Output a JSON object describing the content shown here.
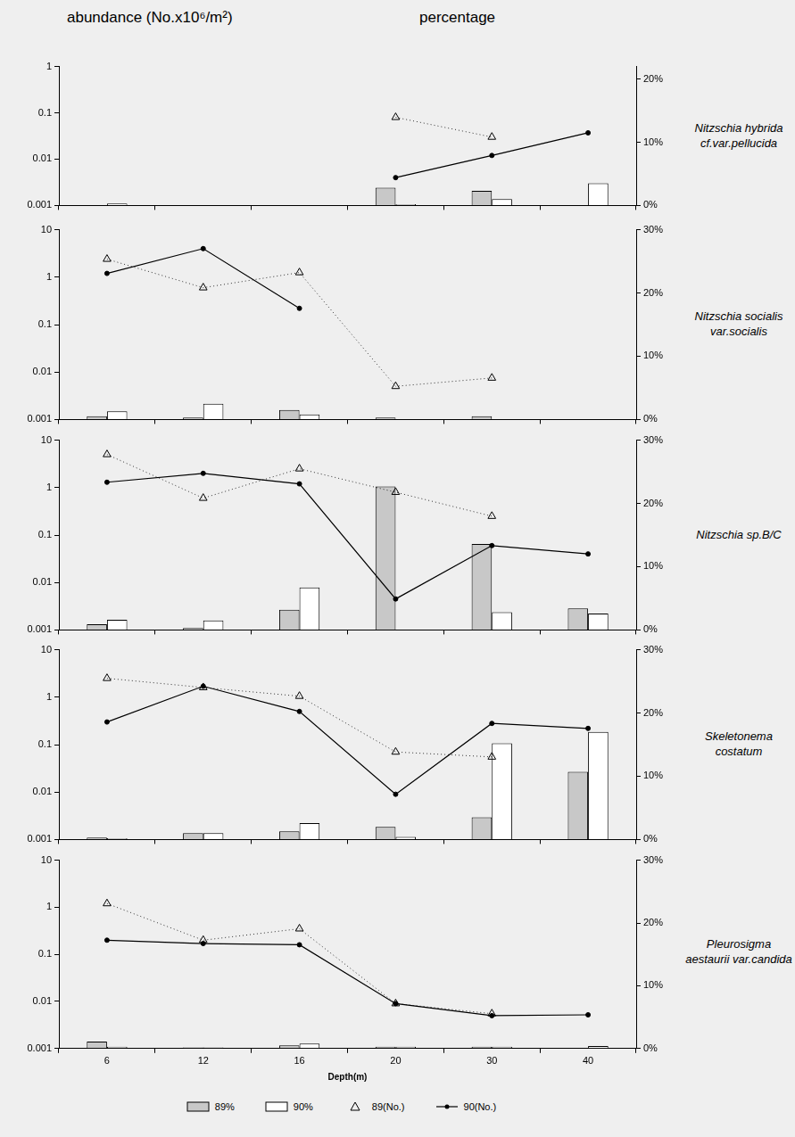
{
  "chart_data": [
    {
      "type": "bar",
      "title": "Nitzschia hybrida cf.var.pellucida",
      "ylabel": "abundance (No.x10⁶/m²)",
      "y2label": "percentage",
      "categories": [
        "6",
        "12",
        "16",
        "20",
        "30",
        "40"
      ],
      "log": "y",
      "grid": false,
      "tick_labels": "y",
      "ylim": [
        0.001,
        1
      ],
      "yticks": [
        0.001,
        0.01,
        0.1,
        1
      ],
      "y2lim": [
        0,
        22
      ],
      "y2ticks": [
        {
          "value": 0,
          "label": "0%"
        },
        {
          "value": 10,
          "label": "10%"
        },
        {
          "value": 20,
          "label": "20%"
        }
      ],
      "series": [
        {
          "name": "89%",
          "type": "bar",
          "axis": "y2",
          "color": "#c8c8c8",
          "values": [
            null,
            null,
            null,
            2.8,
            2.3,
            null
          ]
        },
        {
          "name": "90%",
          "type": "bar",
          "axis": "y2",
          "color": "#ffffff",
          "values": [
            0.3,
            null,
            null,
            0.2,
            1,
            3.5
          ]
        },
        {
          "name": "89(No.)",
          "type": "line",
          "marker": "triangle",
          "line_style": "dotted",
          "color": "#000000",
          "values": [
            null,
            null,
            null,
            0.08,
            0.03,
            null
          ]
        },
        {
          "name": "90(No.)",
          "type": "line",
          "marker": "circle",
          "line_style": "solid",
          "color": "#000000",
          "values": [
            null,
            null,
            null,
            0.004,
            0.012,
            0.037
          ]
        }
      ]
    },
    {
      "type": "bar",
      "title": "Nitzschia socialis var.socialis",
      "categories": [
        "6",
        "12",
        "16",
        "20",
        "30",
        "40"
      ],
      "log": "y",
      "grid": false,
      "tick_labels": "y",
      "ylim": [
        0.001,
        10
      ],
      "yticks": [
        0.001,
        0.01,
        0.1,
        1,
        10
      ],
      "y2lim": [
        0,
        30
      ],
      "y2ticks": [
        {
          "value": 0,
          "label": "0%"
        },
        {
          "value": 10,
          "label": "10%"
        },
        {
          "value": 20,
          "label": "20%"
        },
        {
          "value": 30,
          "label": "30%"
        }
      ],
      "series": [
        {
          "name": "89%",
          "type": "bar",
          "axis": "y2",
          "color": "#c8c8c8",
          "values": [
            0.5,
            0.3,
            1.5,
            0.3,
            0.5,
            null
          ]
        },
        {
          "name": "90%",
          "type": "bar",
          "axis": "y2",
          "color": "#ffffff",
          "values": [
            1.3,
            2.5,
            0.8,
            null,
            null,
            null
          ]
        },
        {
          "name": "89(No.)",
          "type": "line",
          "marker": "triangle",
          "line_style": "dotted",
          "color": "#000000",
          "values": [
            2.4,
            0.6,
            1.25,
            0.005,
            0.0075,
            null
          ]
        },
        {
          "name": "90(No.)",
          "type": "line",
          "marker": "circle",
          "line_style": "solid",
          "color": "#000000",
          "values": [
            1.2,
            4,
            0.22,
            null,
            null,
            null
          ]
        }
      ]
    },
    {
      "type": "bar",
      "title": "Nitzschia sp.B/C",
      "categories": [
        "6",
        "12",
        "16",
        "20",
        "30",
        "40"
      ],
      "log": "y",
      "grid": false,
      "tick_labels": "y",
      "ylim": [
        0.001,
        10
      ],
      "yticks": [
        0.001,
        0.01,
        0.1,
        1,
        10
      ],
      "y2lim": [
        0,
        30
      ],
      "y2ticks": [
        {
          "value": 0,
          "label": "0%"
        },
        {
          "value": 10,
          "label": "10%"
        },
        {
          "value": 20,
          "label": "20%"
        },
        {
          "value": 30,
          "label": "30%"
        }
      ],
      "series": [
        {
          "name": "89%",
          "type": "bar",
          "axis": "y2",
          "color": "#c8c8c8",
          "values": [
            0.9,
            0.3,
            3.2,
            22.7,
            13.6,
            3.4
          ]
        },
        {
          "name": "90%",
          "type": "bar",
          "axis": "y2",
          "color": "#ffffff",
          "values": [
            1.6,
            1.5,
            6.7,
            null,
            2.8,
            2.6
          ]
        },
        {
          "name": "89(No.)",
          "type": "line",
          "marker": "triangle",
          "line_style": "dotted",
          "color": "#000000",
          "values": [
            5,
            0.6,
            2.5,
            0.8,
            0.25,
            null
          ]
        },
        {
          "name": "90(No.)",
          "type": "line",
          "marker": "circle",
          "line_style": "solid",
          "color": "#000000",
          "values": [
            1.3,
            2,
            1.2,
            0.0045,
            0.06,
            0.04
          ]
        }
      ]
    },
    {
      "type": "bar",
      "title": "Skeletonema costatum",
      "categories": [
        "6",
        "12",
        "16",
        "20",
        "30",
        "40"
      ],
      "log": "y",
      "grid": false,
      "tick_labels": "y",
      "ylim": [
        0.001,
        10
      ],
      "yticks": [
        0.001,
        0.01,
        0.1,
        1,
        10
      ],
      "y2lim": [
        0,
        30
      ],
      "y2ticks": [
        {
          "value": 0,
          "label": "0%"
        },
        {
          "value": 10,
          "label": "10%"
        },
        {
          "value": 20,
          "label": "20%"
        },
        {
          "value": 30,
          "label": "30%"
        }
      ],
      "series": [
        {
          "name": "89%",
          "type": "bar",
          "axis": "y2",
          "color": "#c8c8c8",
          "values": [
            0.3,
            1,
            1.3,
            2,
            3.5,
            10.7
          ]
        },
        {
          "name": "90%",
          "type": "bar",
          "axis": "y2",
          "color": "#ffffff",
          "values": [
            0.2,
            1,
            2.6,
            0.4,
            15.2,
            17
          ]
        },
        {
          "name": "89(No.)",
          "type": "line",
          "marker": "triangle",
          "line_style": "dotted",
          "color": "#000000",
          "values": [
            2.5,
            1.6,
            1.05,
            0.07,
            0.055,
            null
          ]
        },
        {
          "name": "90(No.)",
          "type": "line",
          "marker": "circle",
          "line_style": "solid",
          "color": "#000000",
          "values": [
            0.3,
            1.7,
            0.5,
            0.009,
            0.28,
            0.22
          ]
        }
      ]
    },
    {
      "type": "bar",
      "title": "Pleurosigma aestaurii var.candida",
      "xlabel": "Depth(m)",
      "categories": [
        "6",
        "12",
        "16",
        "20",
        "30",
        "40"
      ],
      "log": "y",
      "grid": false,
      "legend": "bottom",
      "ylim": [
        0.001,
        10
      ],
      "yticks": [
        0.001,
        0.01,
        0.1,
        1,
        10
      ],
      "y2lim": [
        0,
        30
      ],
      "y2ticks": [
        {
          "value": 0,
          "label": "0%"
        },
        {
          "value": 10,
          "label": "10%"
        },
        {
          "value": 20,
          "label": "20%"
        },
        {
          "value": 30,
          "label": "30%"
        }
      ],
      "series": [
        {
          "name": "89%",
          "type": "bar",
          "axis": "y2",
          "color": "#c8c8c8",
          "values": [
            1.1,
            0.2,
            0.5,
            0.3,
            0.3,
            null
          ]
        },
        {
          "name": "90%",
          "type": "bar",
          "axis": "y2",
          "color": "#ffffff",
          "values": [
            0.3,
            0.2,
            0.8,
            0.3,
            0.3,
            0.4
          ]
        },
        {
          "name": "89(No.)",
          "type": "line",
          "marker": "triangle",
          "line_style": "dotted",
          "color": "#000000",
          "values": [
            1.2,
            0.2,
            0.35,
            0.009,
            0.0055,
            null
          ]
        },
        {
          "name": "90(No.)",
          "type": "line",
          "marker": "circle",
          "line_style": "solid",
          "color": "#000000",
          "values": [
            0.2,
            0.17,
            0.16,
            0.009,
            0.005,
            0.0052
          ]
        }
      ]
    }
  ]
}
